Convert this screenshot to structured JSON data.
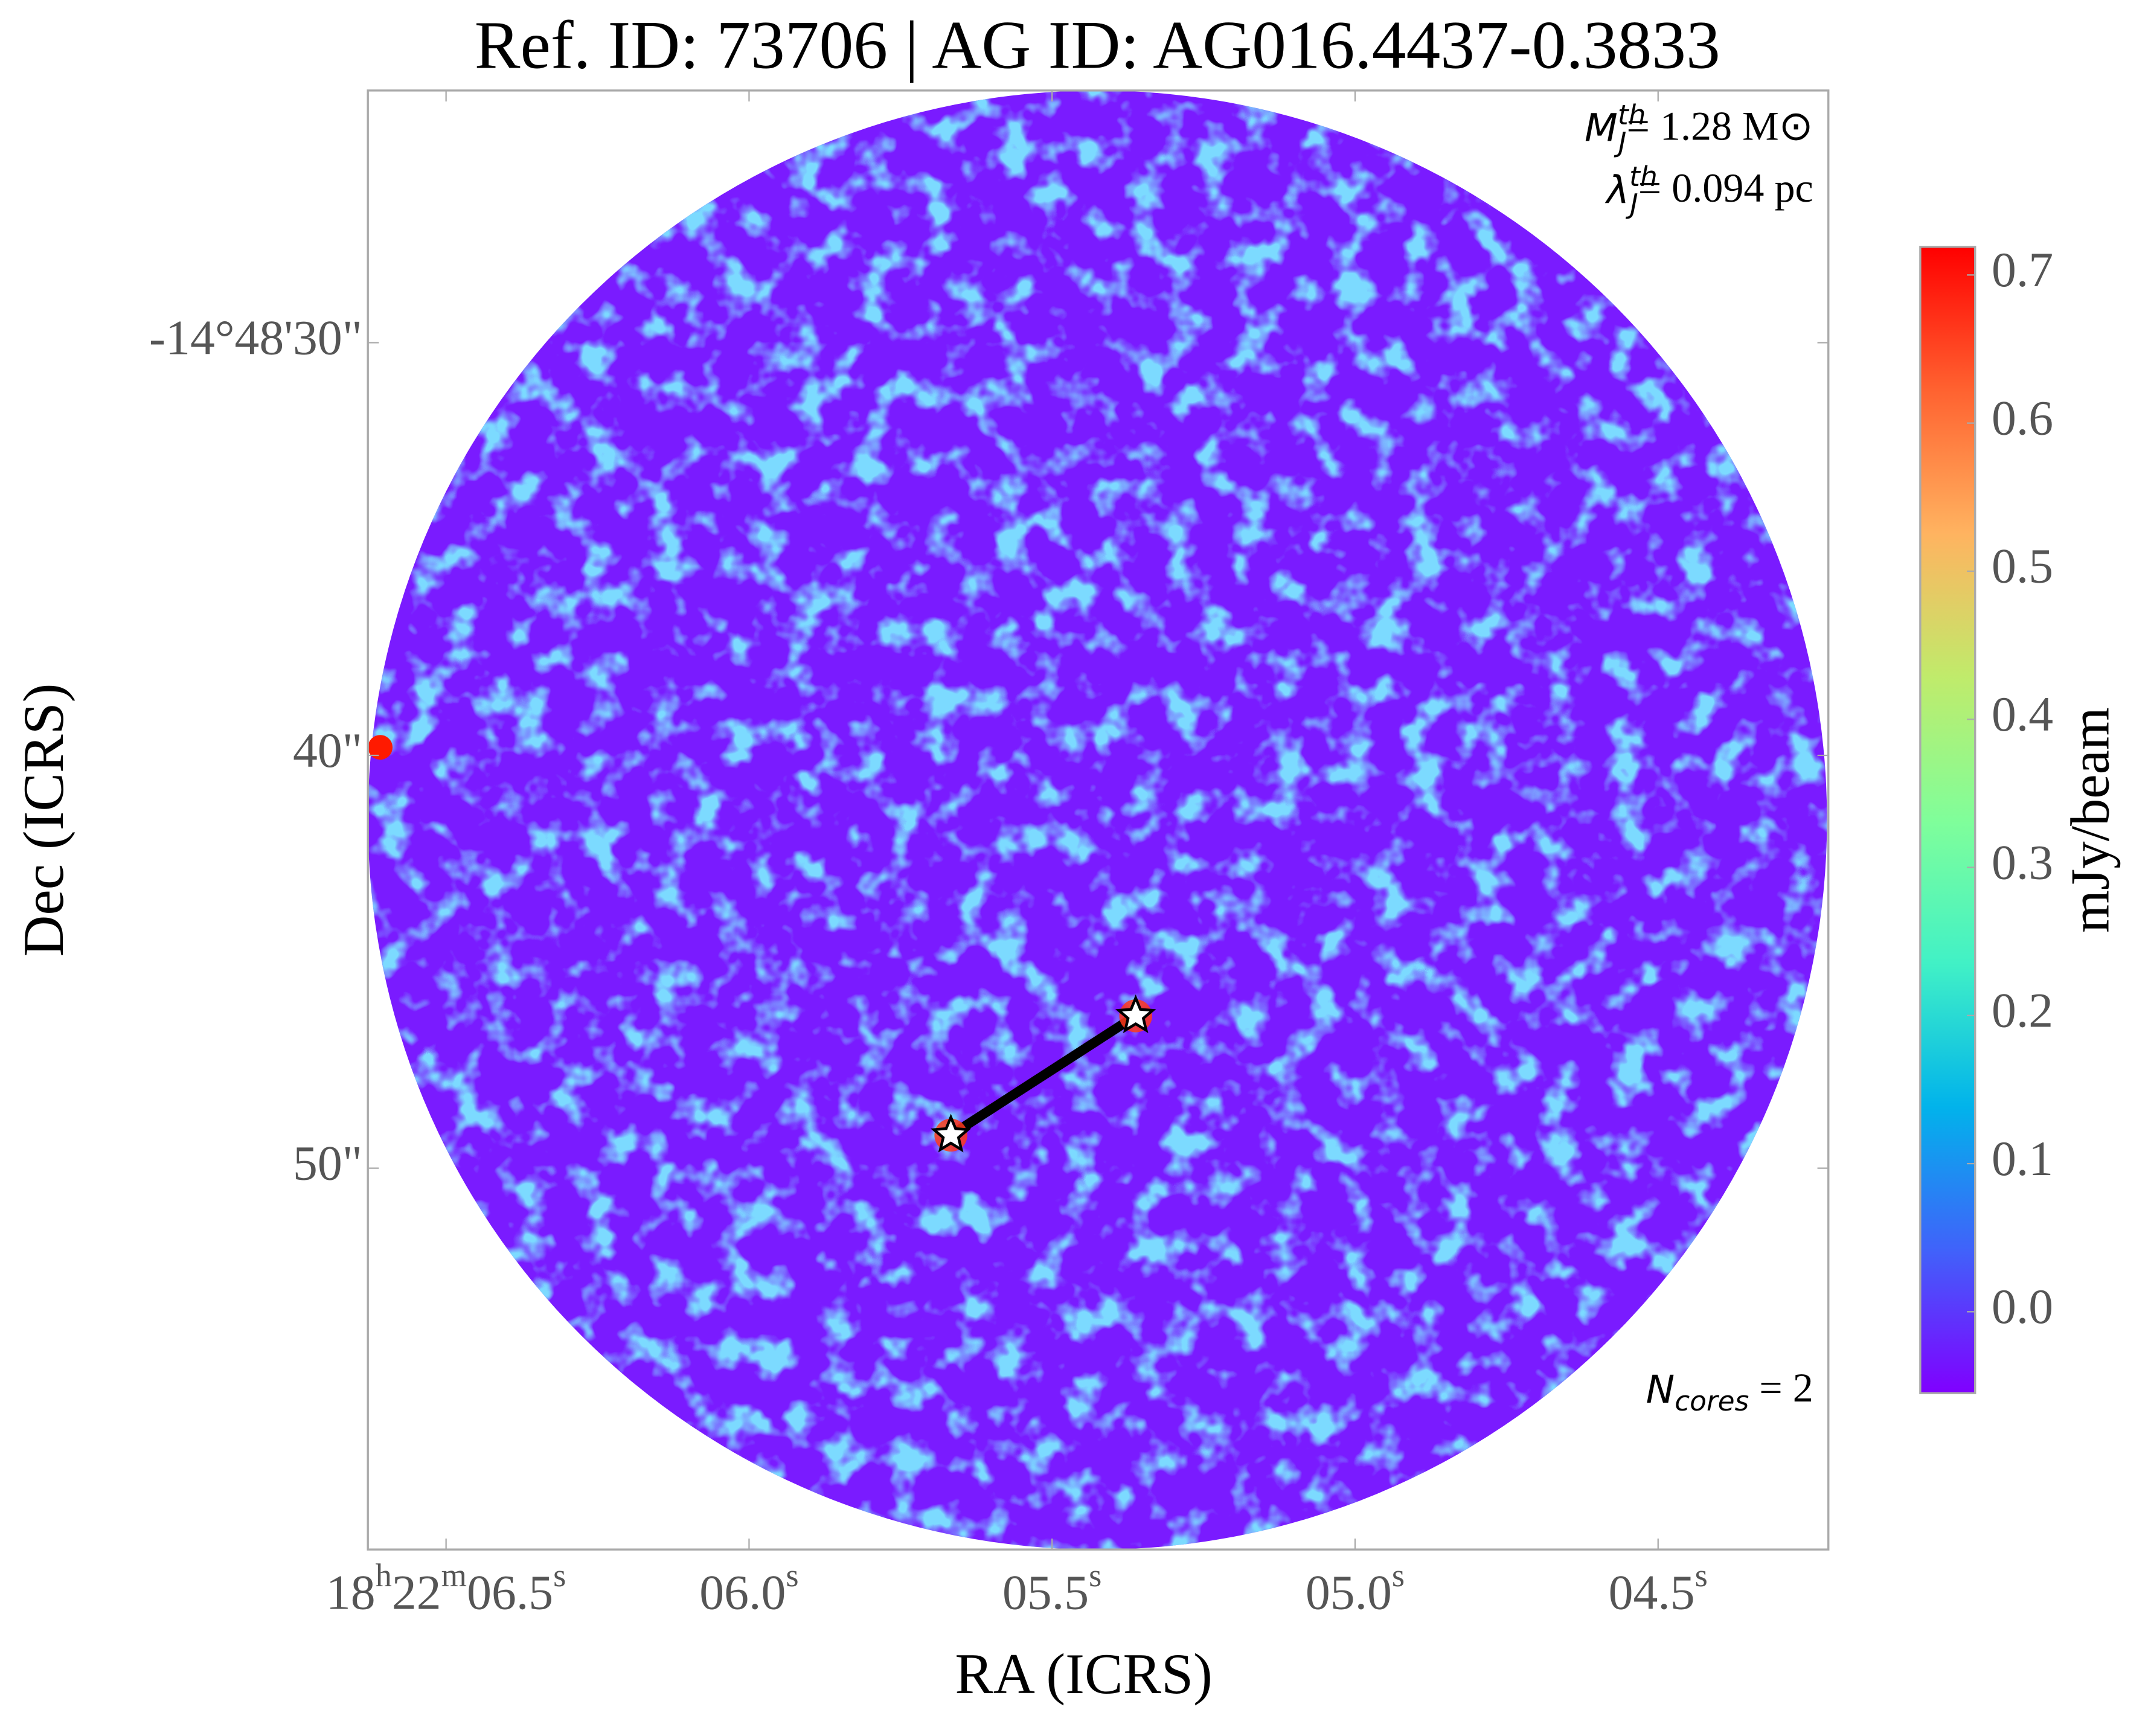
{
  "chart_data": {
    "type": "image",
    "title": "Ref. ID: 73706 | AG ID: AG016.4437-0.3833",
    "x_label": "RA (ICRS)",
    "y_label": "Dec (ICRS)",
    "xlim": [
      6.629,
      4.219
    ],
    "ylim": [
      59.24,
      23.89
    ],
    "xticks": [
      {
        "value": 6.5,
        "label": "18h22m06.5s"
      },
      {
        "value": 6.0,
        "label": "06.0s"
      },
      {
        "value": 5.5,
        "label": "05.5s"
      },
      {
        "value": 5.0,
        "label": "05.0s"
      },
      {
        "value": 4.5,
        "label": "04.5s"
      }
    ],
    "yticks": [
      {
        "value": 30,
        "label": "-14°48'30\""
      },
      {
        "value": 40,
        "label": "40\""
      },
      {
        "value": 50,
        "label": "50\""
      }
    ],
    "colormap": "rainbow",
    "colorbar_label": "mJy/beam",
    "clim": [
      -0.055,
      0.719
    ],
    "cticks": [
      {
        "value": 0,
        "label": "0.0"
      },
      {
        "value": 0.1,
        "label": "0.1"
      },
      {
        "value": 0.2,
        "label": "0.2"
      },
      {
        "value": 0.3,
        "label": "0.3"
      },
      {
        "value": 0.4,
        "label": "0.4"
      },
      {
        "value": 0.5,
        "label": "0.5"
      },
      {
        "value": 0.6,
        "label": "0.6"
      },
      {
        "value": 0.7,
        "label": "0.7"
      }
    ],
    "cores": {
      "name": "cores",
      "x": [
        5.667,
        5.362
      ],
      "y": [
        49.2,
        46.31
      ],
      "color": "#ffffff"
    },
    "annotations": [
      {
        "symbol": "M",
        "sub": "J",
        "sup": "th",
        "text": "= 1.28 M⊙"
      },
      {
        "symbol": "λ",
        "sub": "J",
        "sup": "th",
        "text": "= 0.094 pc"
      },
      {
        "symbol": "N",
        "sub": "cores",
        "text": " = 2"
      }
    ]
  }
}
